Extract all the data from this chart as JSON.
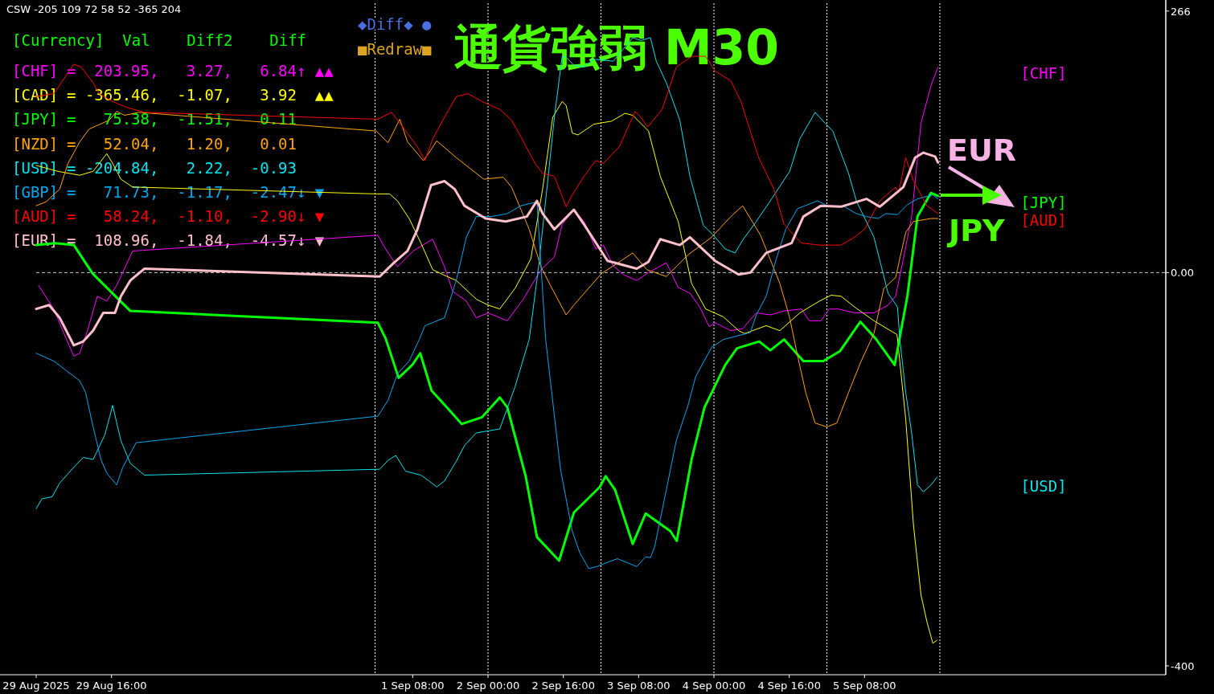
{
  "chart_data": {
    "type": "line",
    "title": "通貨強弱 M30",
    "xlim": [
      "2025-08-29T00:00",
      "2025-09-08T00:00"
    ],
    "ylim": [
      -409,
      274
    ],
    "xticks": [
      {
        "value": "2025-08-29T00:00",
        "label": "29 Aug 2025"
      },
      {
        "value": "2025-08-29T16:00",
        "label": "29 Aug 16:00"
      },
      {
        "value": "2025-09-01T08:00",
        "label": "1 Sep 08:00"
      },
      {
        "value": "2025-09-02T00:00",
        "label": "2 Sep 00:00"
      },
      {
        "value": "2025-09-02T16:00",
        "label": "2 Sep 16:00"
      },
      {
        "value": "2025-09-03T08:00",
        "label": "3 Sep 08:00"
      },
      {
        "value": "2025-09-04T00:00",
        "label": "4 Sep 00:00"
      },
      {
        "value": "2025-09-04T16:00",
        "label": "4 Sep 16:00"
      },
      {
        "value": "2025-09-05T08:00",
        "label": "5 Sep 08:00"
      }
    ],
    "yticks": [
      266,
      {
        "value": 0,
        "label": "0.00"
      },
      -400
    ],
    "legend": "top left",
    "ref_lines": [
      {
        "axis": "y",
        "value": 0,
        "color": "#c8c8c8",
        "line_style": "dashed"
      },
      {
        "axis": "x",
        "value": "2025-09-01T00:00",
        "color": "#ffffff",
        "line_style": "dotted"
      },
      {
        "axis": "x",
        "value": "2025-09-02T00:00",
        "color": "#ffffff",
        "line_style": "dotted"
      },
      {
        "axis": "x",
        "value": "2025-09-03T00:00",
        "color": "#ffffff",
        "line_style": "dotted"
      },
      {
        "axis": "x",
        "value": "2025-09-04T00:00",
        "color": "#ffffff",
        "line_style": "dotted"
      },
      {
        "axis": "x",
        "value": "2025-09-05T00:00",
        "color": "#ffffff",
        "line_style": "dotted"
      },
      {
        "axis": "x",
        "value": "2025-09-06T00:00",
        "color": "#ffffff",
        "line_style": "dotted"
      }
    ],
    "annotations": [
      "CSW -205 109 72 58 52 -365 204",
      "[Currency]  Val    Diff2    Diff",
      "=  203.95,   3.27,   6.84↑ ▲▲",
      "= -365.46,  -1.07,   3.92  ▲▲",
      "=   75.38,  -1.51,   0.11",
      "=   52.04,   1.20,   0.01",
      "= -204.84,   2.22,  -0.93",
      "=   71.73,  -1.17,  -2.47↓ ▼",
      "=   58.24,  -1.10,  -2.90↓ ▼",
      "=  108.96,  -1.84,  -4.57↓ ▼",
      "◆Diff◆ ●",
      "■Redraw■",
      "EUR",
      "JPY",
      "[CHF]",
      "[JPY]",
      "[AUD]",
      "[USD]"
    ],
    "series": [
      {
        "name": "[CHF]",
        "color": "#ff00ff",
        "x": [
          "2025-08-29T00:30",
          "2025-08-29T03:45",
          "2025-08-29T05:54",
          "2025-08-29T08:00",
          "2025-08-29T09:15",
          "2025-08-29T10:54",
          "2025-08-29T13:00",
          "2025-08-29T15:00",
          "2025-08-29T17:06",
          "2025-08-29T20:30",
          "2025-09-01T00:36",
          "2025-09-01T02:15",
          "2025-09-01T04:45",
          "2025-09-01T08:06",
          "2025-09-01T12:15",
          "2025-09-01T14:45",
          "2025-09-01T16:30",
          "2025-09-01T19:24",
          "2025-09-01T21:30",
          "2025-09-02T00:00",
          "2025-09-02T04:06",
          "2025-09-02T07:30",
          "2025-09-02T11:15",
          "2025-09-02T14:06",
          "2025-09-02T15:45",
          "2025-09-02T18:15",
          "2025-09-02T20:24",
          "2025-09-02T22:54",
          "2025-09-03T00:30",
          "2025-09-03T02:36",
          "2025-09-03T04:45",
          "2025-09-03T07:36",
          "2025-09-03T10:06",
          "2025-09-03T13:54",
          "2025-09-03T16:24",
          "2025-09-03T18:54",
          "2025-09-03T21:00",
          "2025-09-03T23:00",
          "2025-09-04T00:15",
          "2025-09-04T03:36",
          "2025-09-04T06:06",
          "2025-09-04T09:00",
          "2025-09-04T12:00",
          "2025-09-04T14:54",
          "2025-09-04T18:36",
          "2025-09-04T20:15",
          "2025-09-04T22:45",
          "2025-09-05T00:30",
          "2025-09-05T02:30",
          "2025-09-05T05:54",
          "2025-09-05T10:00",
          "2025-09-05T13:00",
          "2025-09-05T14:36",
          "2025-09-05T16:15",
          "2025-09-05T18:00",
          "2025-09-05T20:00",
          "2025-09-05T22:06",
          "2025-09-05T23:36"
        ],
        "values": [
          -13,
          -37,
          -62,
          -85,
          -82,
          -59,
          -24,
          -29,
          -13,
          22,
          38,
          24,
          6,
          22,
          34,
          6,
          -19,
          -29,
          -46,
          -41,
          -49,
          -27,
          3,
          16,
          49,
          64,
          52,
          24,
          28,
          7,
          -2,
          -8,
          0,
          10,
          -15,
          -21,
          -35,
          -55,
          -51,
          -59,
          -57,
          -41,
          -43,
          -39,
          -37,
          -49,
          -49,
          -37,
          -37,
          -41,
          -41,
          -33,
          -24,
          14,
          57,
          152,
          190,
          209
        ]
      },
      {
        "name": "[CAD]",
        "color": "#ffff00",
        "x": [
          "2025-08-29T00:00",
          "2025-08-29T04:36",
          "2025-08-29T09:15",
          "2025-08-29T12:06",
          "2025-08-29T15:00",
          "2025-08-29T16:15",
          "2025-08-29T18:00",
          "2025-08-29T20:30",
          "2025-09-01T00:36",
          "2025-09-01T03:06",
          "2025-09-01T04:45",
          "2025-09-01T07:15",
          "2025-09-01T09:45",
          "2025-09-01T12:15",
          "2025-09-01T14:24",
          "2025-09-01T17:15",
          "2025-09-01T21:30",
          "2025-09-02T00:00",
          "2025-09-02T02:30",
          "2025-09-02T05:45",
          "2025-09-02T09:06",
          "2025-09-02T11:36",
          "2025-09-02T13:45",
          "2025-09-02T15:45",
          "2025-09-02T16:36",
          "2025-09-02T17:54",
          "2025-09-02T19:06",
          "2025-09-02T22:30",
          "2025-09-03T02:15",
          "2025-09-03T05:06",
          "2025-09-03T06:45",
          "2025-09-03T10:06",
          "2025-09-03T12:36",
          "2025-09-03T16:24",
          "2025-09-03T19:15",
          "2025-09-03T22:15",
          "2025-09-04T02:00",
          "2025-09-04T05:15",
          "2025-09-04T06:30",
          "2025-09-04T11:06",
          "2025-09-04T14:00",
          "2025-09-04T18:15",
          "2025-09-04T22:24",
          "2025-09-05T00:54",
          "2025-09-05T03:00",
          "2025-09-05T05:54",
          "2025-09-05T10:00",
          "2025-09-05T14:54",
          "2025-09-05T16:45",
          "2025-09-05T18:24",
          "2025-09-05T20:00",
          "2025-09-05T21:15",
          "2025-09-05T22:30",
          "2025-09-05T23:24"
        ],
        "values": [
          109,
          103,
          99,
          103,
          121,
          111,
          95,
          87,
          80,
          80,
          73,
          55,
          30,
          3,
          -2,
          -8,
          -27,
          -33,
          -37,
          -16,
          14,
          85,
          158,
          174,
          170,
          142,
          140,
          151,
          154,
          162,
          160,
          144,
          98,
          52,
          -11,
          -37,
          -45,
          -59,
          -62,
          -54,
          -59,
          -41,
          -29,
          -23,
          -24,
          -35,
          -49,
          -63,
          -149,
          -257,
          -328,
          -355,
          -377,
          -374
        ]
      },
      {
        "name": "[JPY]",
        "color": "#00ff00",
        "x": [
          "2025-08-29T00:00",
          "2025-08-29T04:00",
          "2025-08-29T08:00",
          "2025-08-29T12:00",
          "2025-08-29T16:00",
          "2025-08-29T20:00",
          "2025-09-01T00:36",
          "2025-09-01T02:15",
          "2025-09-01T05:00",
          "2025-09-01T07:54",
          "2025-09-01T09:36",
          "2025-09-01T12:00",
          "2025-09-01T16:00",
          "2025-09-01T18:24",
          "2025-09-01T22:45",
          "2025-09-02T02:30",
          "2025-09-02T04:06",
          "2025-09-02T08:00",
          "2025-09-02T10:24",
          "2025-09-02T15:06",
          "2025-09-02T18:15",
          "2025-09-02T23:45",
          "2025-09-03T01:00",
          "2025-09-03T03:00",
          "2025-09-03T06:45",
          "2025-09-03T09:30",
          "2025-09-03T14:45",
          "2025-09-03T16:06",
          "2025-09-03T19:15",
          "2025-09-03T22:00",
          "2025-09-04T02:24",
          "2025-09-04T04:54",
          "2025-09-04T09:36",
          "2025-09-04T12:00",
          "2025-09-04T14:54",
          "2025-09-04T19:00",
          "2025-09-04T23:15",
          "2025-09-05T02:45",
          "2025-09-05T07:06",
          "2025-09-05T10:30",
          "2025-09-05T14:24",
          "2025-09-05T17:06",
          "2025-09-05T19:15",
          "2025-09-05T22:06",
          "2025-09-05T23:36"
        ],
        "values": [
          28,
          30,
          28,
          -1,
          -20,
          -39,
          -51,
          -67,
          -107,
          -94,
          -82,
          -120,
          -141,
          -154,
          -147,
          -127,
          -137,
          -207,
          -269,
          -293,
          -244,
          -218,
          -207,
          -221,
          -276,
          -245,
          -263,
          -273,
          -190,
          -137,
          -94,
          -77,
          -70,
          -79,
          -68,
          -90,
          -90,
          -80,
          -50,
          -68,
          -94,
          -24,
          57,
          81,
          78
        ]
      },
      {
        "name": "[NZD]",
        "color": "#ffa500",
        "x": [
          "2025-08-29T00:00",
          "2025-08-29T02:06",
          "2025-08-29T05:00",
          "2025-08-29T06:45",
          "2025-08-29T09:15",
          "2025-08-29T11:15",
          "2025-08-29T15:30",
          "2025-08-29T17:06",
          "2025-08-29T18:45",
          "2025-08-29T21:45",
          "2025-09-01T00:15",
          "2025-09-01T02:45",
          "2025-09-01T05:15",
          "2025-09-01T06:54",
          "2025-09-01T10:15",
          "2025-09-01T11:30",
          "2025-09-01T13:06",
          "2025-09-01T17:15",
          "2025-09-01T23:06",
          "2025-09-02T03:15",
          "2025-09-02T05:00",
          "2025-09-02T08:45",
          "2025-09-02T11:15",
          "2025-09-02T13:15",
          "2025-09-02T16:36",
          "2025-09-02T18:15",
          "2025-09-03T00:06",
          "2025-09-03T04:15",
          "2025-09-03T06:45",
          "2025-09-03T09:45",
          "2025-09-03T13:54",
          "2025-09-03T18:30",
          "2025-09-03T23:30",
          "2025-09-04T03:36",
          "2025-09-04T06:06",
          "2025-09-04T09:54",
          "2025-09-04T14:00",
          "2025-09-04T16:06",
          "2025-09-04T17:45",
          "2025-09-04T19:30",
          "2025-09-04T21:30",
          "2025-09-05T00:00",
          "2025-09-05T02:06",
          "2025-09-05T04:36",
          "2025-09-05T07:06",
          "2025-09-05T10:00",
          "2025-09-05T12:06",
          "2025-09-05T14:36",
          "2025-09-05T16:45",
          "2025-09-05T18:24",
          "2025-09-05T22:06",
          "2025-09-05T23:36"
        ],
        "values": [
          68,
          72,
          85,
          111,
          133,
          146,
          155,
          164,
          160,
          163,
          144,
          132,
          156,
          133,
          114,
          122,
          134,
          117,
          95,
          97,
          87,
          44,
          6,
          -13,
          -43,
          -33,
          -1,
          12,
          20,
          3,
          -4,
          18,
          36,
          57,
          68,
          38,
          -11,
          -46,
          -84,
          -122,
          -153,
          -157,
          -153,
          -122,
          -92,
          -62,
          -16,
          -5,
          41,
          52,
          55,
          55
        ]
      },
      {
        "name": "[USD]",
        "color": "#00e5ee",
        "x": [
          "2025-08-29T00:00",
          "2025-08-29T01:15",
          "2025-08-29T03:24",
          "2025-08-29T05:00",
          "2025-08-29T08:00",
          "2025-08-29T10:00",
          "2025-08-29T12:06",
          "2025-08-29T14:36",
          "2025-08-29T16:15",
          "2025-08-29T18:00",
          "2025-08-29T20:00",
          "2025-08-29T23:00",
          "2025-09-01T01:00",
          "2025-09-01T02:45",
          "2025-09-01T04:24",
          "2025-09-01T06:30",
          "2025-09-01T09:45",
          "2025-09-01T11:30",
          "2025-09-01T13:06",
          "2025-09-01T14:45",
          "2025-09-01T17:15",
          "2025-09-01T19:00",
          "2025-09-01T21:30",
          "2025-09-02T00:00",
          "2025-09-02T02:30",
          "2025-09-02T04:06",
          "2025-09-02T05:45",
          "2025-09-02T08:45",
          "2025-09-02T10:45",
          "2025-09-02T12:54",
          "2025-09-02T14:06",
          "2025-09-02T15:45",
          "2025-09-02T16:36",
          "2025-09-02T18:15",
          "2025-09-02T20:24",
          "2025-09-02T22:30",
          "2025-09-03T02:36",
          "2025-09-03T06:45",
          "2025-09-03T08:30",
          "2025-09-03T10:30",
          "2025-09-03T11:45",
          "2025-09-03T13:54",
          "2025-09-03T16:45",
          "2025-09-03T18:54",
          "2025-09-03T21:45",
          "2025-09-03T23:54",
          "2025-09-04T02:24",
          "2025-09-04T04:30",
          "2025-09-04T06:06",
          "2025-09-04T09:00",
          "2025-09-04T12:24",
          "2025-09-04T16:06",
          "2025-09-04T18:15",
          "2025-09-04T21:30",
          "2025-09-04T23:36",
          "2025-09-05T01:15",
          "2025-09-05T04:36",
          "2025-09-05T06:15",
          "2025-09-05T10:00",
          "2025-09-05T13:00",
          "2025-09-05T15:00",
          "2025-09-05T15:30",
          "2025-09-05T16:45",
          "2025-09-05T18:00",
          "2025-09-05T19:15",
          "2025-09-05T20:30",
          "2025-09-05T22:06",
          "2025-09-05T23:24"
        ],
        "values": [
          -240,
          -230,
          -228,
          -214,
          -198,
          -188,
          -190,
          -165,
          -135,
          -171,
          -194,
          -206,
          -200,
          -191,
          -186,
          -202,
          -206,
          -212,
          -218,
          -212,
          -192,
          -176,
          -163,
          -161,
          -159,
          -138,
          -116,
          -68,
          6,
          103,
          158,
          220,
          219,
          211,
          209,
          217,
          215,
          239,
          236,
          239,
          215,
          193,
          155,
          98,
          48,
          38,
          24,
          20,
          33,
          52,
          76,
          103,
          136,
          163,
          152,
          144,
          101,
          73,
          36,
          -21,
          -35,
          -68,
          -122,
          -163,
          -216,
          -223,
          -216,
          -208
        ]
      },
      {
        "name": "[GBP]",
        "color": "#00a8f0",
        "x": [
          "2025-08-29T00:00",
          "2025-08-29T03:45",
          "2025-08-29T09:15",
          "2025-08-29T10:30",
          "2025-08-29T12:06",
          "2025-08-29T13:45",
          "2025-08-29T15:00",
          "2025-08-29T17:06",
          "2025-08-29T18:24",
          "2025-08-29T21:15",
          "2025-09-01T00:36",
          "2025-09-01T02:45",
          "2025-09-01T04:45",
          "2025-09-01T07:15",
          "2025-09-01T09:24",
          "2025-09-01T10:36",
          "2025-09-01T14:45",
          "2025-09-01T17:15",
          "2025-09-01T19:24",
          "2025-09-01T21:30",
          "2025-09-02T00:45",
          "2025-09-02T04:06",
          "2025-09-02T07:00",
          "2025-09-02T10:24",
          "2025-09-02T12:15",
          "2025-09-02T15:24",
          "2025-09-02T17:54",
          "2025-09-02T19:30",
          "2025-09-02T21:24",
          "2025-09-02T23:06",
          "2025-09-03T01:45",
          "2025-09-03T03:30",
          "2025-09-03T07:36",
          "2025-09-03T09:30",
          "2025-09-03T10:30",
          "2025-09-03T11:24",
          "2025-09-03T13:30",
          "2025-09-03T16:00",
          "2025-09-03T18:30",
          "2025-09-03T20:06",
          "2025-09-03T23:30",
          "2025-09-04T02:00",
          "2025-09-04T07:45",
          "2025-09-04T09:00",
          "2025-09-04T11:06",
          "2025-09-04T13:15",
          "2025-09-04T15:15",
          "2025-09-04T17:45",
          "2025-09-04T22:00",
          "2025-09-05T00:30",
          "2025-09-05T03:45",
          "2025-09-05T06:15",
          "2025-09-05T08:24",
          "2025-09-05T10:54",
          "2025-09-05T12:30",
          "2025-09-05T15:00",
          "2025-09-05T17:06",
          "2025-09-05T19:15",
          "2025-09-05T22:30",
          "2025-09-05T23:36"
        ],
        "values": [
          -82,
          -90,
          -110,
          -122,
          -157,
          -190,
          -204,
          -216,
          -198,
          -173,
          -146,
          -130,
          -103,
          -90,
          -68,
          -54,
          -46,
          -8,
          36,
          57,
          57,
          60,
          68,
          72,
          -68,
          -200,
          -263,
          -285,
          -301,
          -299,
          -294,
          -291,
          -299,
          -289,
          -290,
          -279,
          -230,
          -171,
          -135,
          -106,
          -76,
          -68,
          -61,
          -43,
          -24,
          14,
          44,
          65,
          73,
          67,
          67,
          60,
          57,
          55,
          60,
          59,
          69,
          75,
          79,
          75
        ]
      },
      {
        "name": "[AUD]",
        "color": "#ff0000",
        "x": [
          "2025-08-29T00:00",
          "2025-08-29T03:45",
          "2025-08-29T08:00",
          "2025-08-29T09:36",
          "2025-08-29T12:06",
          "2025-08-29T13:24",
          "2025-08-29T16:15",
          "2025-08-29T19:15",
          "2025-08-29T23:00",
          "2025-09-01T00:36",
          "2025-09-01T03:30",
          "2025-09-01T05:36",
          "2025-09-01T09:00",
          "2025-09-01T10:36",
          "2025-09-01T12:15",
          "2025-09-01T14:45",
          "2025-09-01T17:15",
          "2025-09-01T19:45",
          "2025-09-01T22:45",
          "2025-09-02T02:30",
          "2025-09-02T05:00",
          "2025-09-02T07:00",
          "2025-09-02T10:00",
          "2025-09-02T11:36",
          "2025-09-02T14:06",
          "2025-09-02T16:36",
          "2025-09-02T17:54",
          "2025-09-02T20:24",
          "2025-09-02T22:54",
          "2025-09-03T00:30",
          "2025-09-03T03:54",
          "2025-09-03T07:15",
          "2025-09-03T08:30",
          "2025-09-03T09:54",
          "2025-09-03T13:00",
          "2025-09-03T16:00",
          "2025-09-03T19:15",
          "2025-09-03T22:15",
          "2025-09-04T00:15",
          "2025-09-04T03:36",
          "2025-09-04T05:45",
          "2025-09-04T09:30",
          "2025-09-04T12:45",
          "2025-09-04T14:54",
          "2025-09-04T18:36",
          "2025-09-04T22:24",
          "2025-09-05T03:00",
          "2025-09-05T05:54",
          "2025-09-05T08:00",
          "2025-09-05T11:15",
          "2025-09-05T14:36",
          "2025-09-05T15:15",
          "2025-09-05T16:45",
          "2025-09-05T18:24",
          "2025-09-05T21:15",
          "2025-09-05T23:36"
        ],
        "values": [
          179,
          182,
          212,
          209,
          193,
          182,
          174,
          168,
          163,
          156,
          163,
          150,
          128,
          114,
          136,
          158,
          179,
          182,
          174,
          166,
          155,
          138,
          111,
          101,
          98,
          67,
          79,
          98,
          114,
          111,
          128,
          164,
          158,
          148,
          166,
          209,
          220,
          220,
          205,
          195,
          174,
          117,
          85,
          49,
          30,
          28,
          28,
          36,
          44,
          73,
          87,
          81,
          117,
          93,
          68,
          60
        ]
      },
      {
        "name": "[EUR]",
        "color": "#ffc0cb",
        "x": [
          "2025-08-29T00:00",
          "2025-08-29T02:45",
          "2025-08-29T05:00",
          "2025-08-29T08:00",
          "2025-08-29T10:00",
          "2025-08-29T12:06",
          "2025-08-29T14:15",
          "2025-08-29T16:45",
          "2025-08-29T18:00",
          "2025-08-29T20:00",
          "2025-08-29T23:00",
          "2025-09-01T01:00",
          "2025-09-01T04:00",
          "2025-09-01T06:54",
          "2025-09-01T09:00",
          "2025-09-01T11:54",
          "2025-09-01T14:45",
          "2025-09-01T16:54",
          "2025-09-01T19:00",
          "2025-09-01T23:30",
          "2025-09-02T03:45",
          "2025-09-02T08:15",
          "2025-09-02T10:24",
          "2025-09-02T11:36",
          "2025-09-02T14:06",
          "2025-09-02T18:15",
          "2025-09-02T20:24",
          "2025-09-03T01:24",
          "2025-09-03T07:36",
          "2025-09-03T10:06",
          "2025-09-03T12:36",
          "2025-09-03T16:45",
          "2025-09-03T18:54",
          "2025-09-04T00:15",
          "2025-09-04T05:15",
          "2025-09-04T07:45",
          "2025-09-04T11:06",
          "2025-09-04T16:30",
          "2025-09-04T19:00",
          "2025-09-04T22:45",
          "2025-09-05T03:00",
          "2025-09-05T08:24",
          "2025-09-05T11:15",
          "2025-09-05T16:15",
          "2025-09-05T18:45",
          "2025-09-05T20:30",
          "2025-09-05T23:00",
          "2025-09-05T23:36"
        ],
        "values": [
          -37,
          -33,
          -46,
          -74,
          -70,
          -59,
          -41,
          -41,
          -24,
          -8,
          4,
          -4,
          10,
          22,
          44,
          89,
          93,
          85,
          68,
          55,
          52,
          57,
          73,
          60,
          44,
          64,
          49,
          12,
          4,
          11,
          34,
          28,
          36,
          12,
          -2,
          0,
          20,
          30,
          57,
          68,
          67,
          75,
          67,
          87,
          117,
          122,
          118,
          112
        ]
      }
    ]
  }
}
